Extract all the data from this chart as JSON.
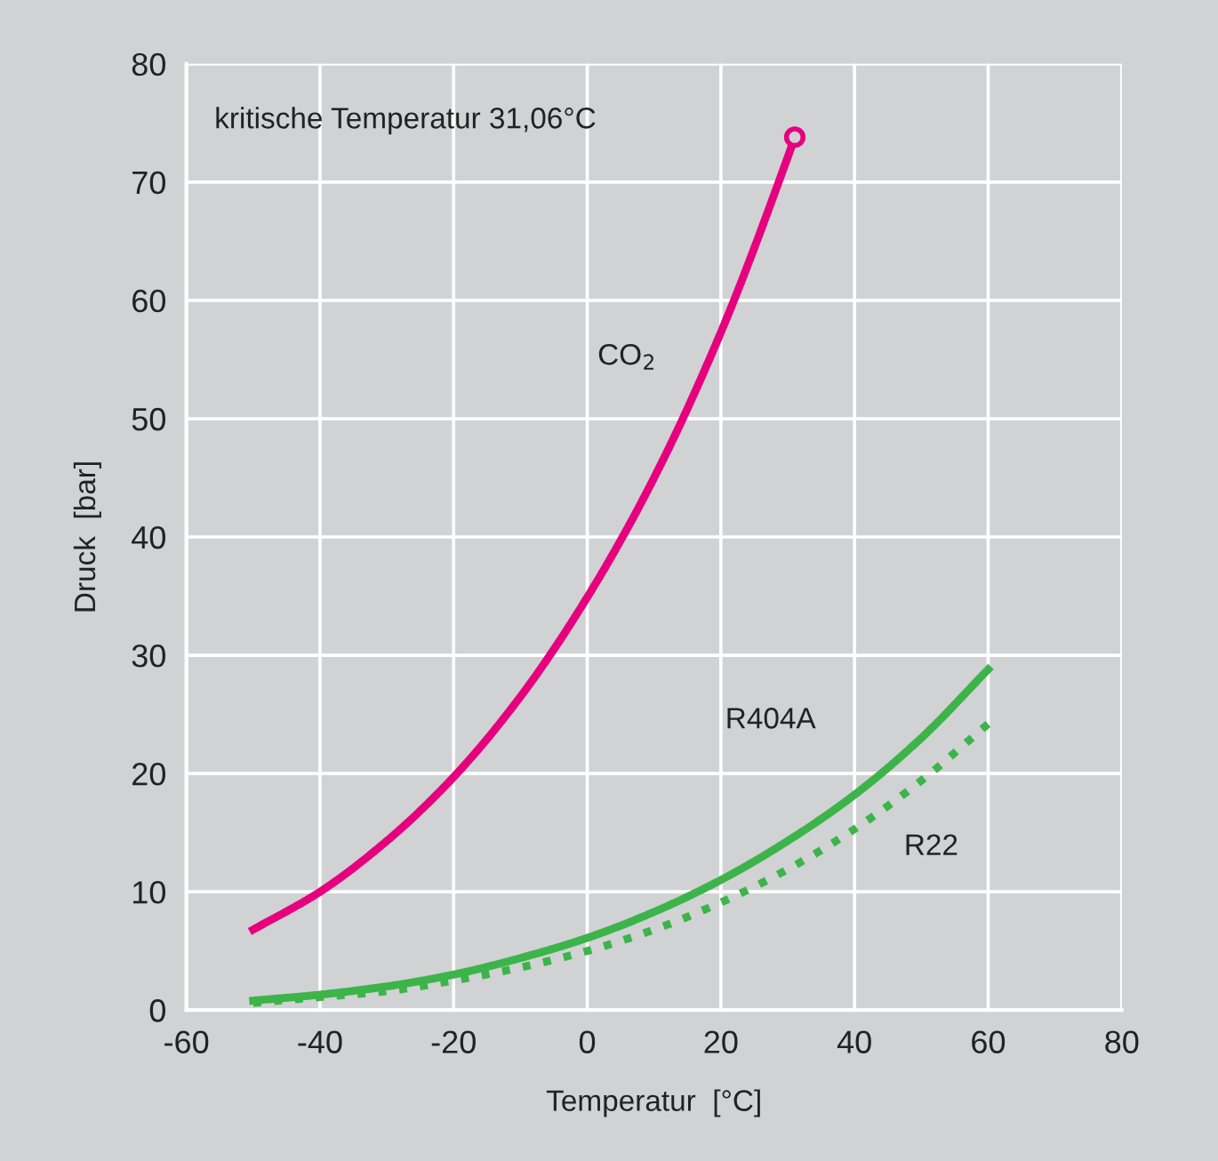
{
  "chart_data": {
    "type": "line",
    "xlabel": "Temperatur  [°C]",
    "ylabel": "Druck  [bar]",
    "xlim": [
      -60,
      80
    ],
    "xticks": [
      -60,
      -40,
      -20,
      0,
      20,
      40,
      60,
      80
    ],
    "ylim": [
      0,
      80
    ],
    "yticks": [
      0,
      10,
      20,
      30,
      40,
      50,
      60,
      70,
      80
    ],
    "grid": true,
    "annotations": [
      "kritische Temperatur 31,06°C"
    ],
    "series": [
      {
        "name": "CO$_{2}$",
        "color": "#e6007e",
        "line_style": "solid",
        "x": [
          -50,
          -40,
          -30,
          -20,
          -10,
          0,
          10,
          20,
          30,
          31.06
        ],
        "values": [
          6.8,
          10.0,
          14.3,
          19.7,
          26.5,
          34.9,
          45.0,
          57.3,
          72.1,
          73.8
        ]
      },
      {
        "name": "R404A",
        "color": "#3cb44a",
        "line_style": "solid",
        "x": [
          -50,
          -40,
          -30,
          -20,
          -10,
          0,
          10,
          20,
          30,
          40,
          50,
          60
        ],
        "values": [
          0.8,
          1.3,
          2.0,
          3.0,
          4.4,
          6.1,
          8.3,
          11.0,
          14.3,
          18.2,
          23.0,
          28.8
        ]
      },
      {
        "name": "R22",
        "color": "#3cb44a",
        "line_style": "dotted",
        "x": [
          -50,
          -40,
          -30,
          -20,
          -10,
          0,
          10,
          20,
          30,
          40,
          50,
          60
        ],
        "values": [
          0.6,
          1.1,
          1.6,
          2.5,
          3.6,
          5.0,
          6.8,
          9.1,
          11.9,
          15.3,
          19.4,
          24.2
        ]
      },
      {
        "type": "scatter",
        "color": "#e6007e",
        "marker": "circle",
        "x": [
          31.06
        ],
        "values": [
          73.8
        ]
      }
    ]
  }
}
